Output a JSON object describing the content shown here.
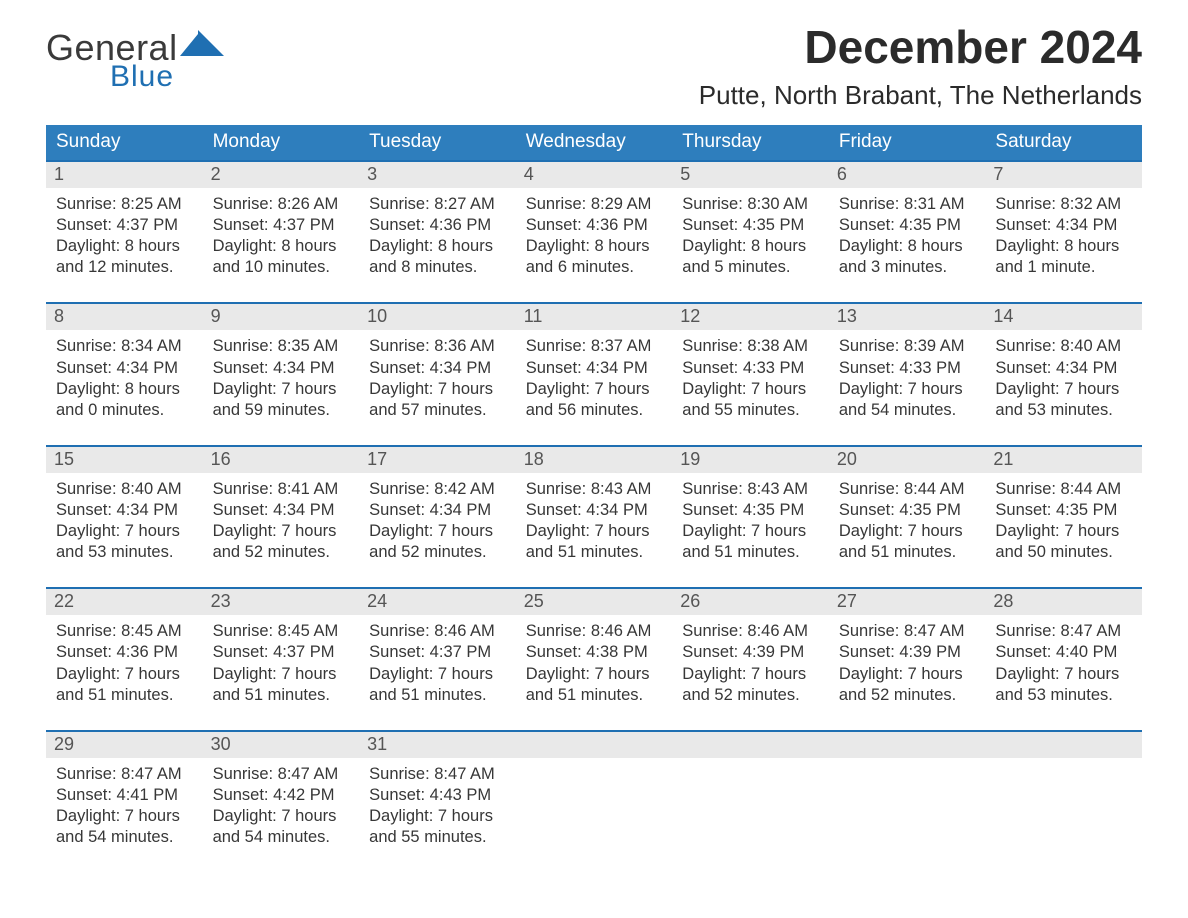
{
  "brand": {
    "word1": "General",
    "word2": "Blue",
    "text_color": "#3a3a3a",
    "accent_color": "#1f6fb2"
  },
  "title": "December 2024",
  "location": "Putte, North Brabant, The Netherlands",
  "colors": {
    "header_bg": "#2e7ebd",
    "header_text": "#ffffff",
    "num_row_bg": "#e9e9e9",
    "divider": "#1f6fb2",
    "page_bg": "#ffffff",
    "body_text": "#373737"
  },
  "day_names": [
    "Sunday",
    "Monday",
    "Tuesday",
    "Wednesday",
    "Thursday",
    "Friday",
    "Saturday"
  ],
  "weeks": [
    [
      {
        "n": "1",
        "sunrise": "8:25 AM",
        "sunset": "4:37 PM",
        "dl1": "Daylight: 8 hours",
        "dl2": "and 12 minutes."
      },
      {
        "n": "2",
        "sunrise": "8:26 AM",
        "sunset": "4:37 PM",
        "dl1": "Daylight: 8 hours",
        "dl2": "and 10 minutes."
      },
      {
        "n": "3",
        "sunrise": "8:27 AM",
        "sunset": "4:36 PM",
        "dl1": "Daylight: 8 hours",
        "dl2": "and 8 minutes."
      },
      {
        "n": "4",
        "sunrise": "8:29 AM",
        "sunset": "4:36 PM",
        "dl1": "Daylight: 8 hours",
        "dl2": "and 6 minutes."
      },
      {
        "n": "5",
        "sunrise": "8:30 AM",
        "sunset": "4:35 PM",
        "dl1": "Daylight: 8 hours",
        "dl2": "and 5 minutes."
      },
      {
        "n": "6",
        "sunrise": "8:31 AM",
        "sunset": "4:35 PM",
        "dl1": "Daylight: 8 hours",
        "dl2": "and 3 minutes."
      },
      {
        "n": "7",
        "sunrise": "8:32 AM",
        "sunset": "4:34 PM",
        "dl1": "Daylight: 8 hours",
        "dl2": "and 1 minute."
      }
    ],
    [
      {
        "n": "8",
        "sunrise": "8:34 AM",
        "sunset": "4:34 PM",
        "dl1": "Daylight: 8 hours",
        "dl2": "and 0 minutes."
      },
      {
        "n": "9",
        "sunrise": "8:35 AM",
        "sunset": "4:34 PM",
        "dl1": "Daylight: 7 hours",
        "dl2": "and 59 minutes."
      },
      {
        "n": "10",
        "sunrise": "8:36 AM",
        "sunset": "4:34 PM",
        "dl1": "Daylight: 7 hours",
        "dl2": "and 57 minutes."
      },
      {
        "n": "11",
        "sunrise": "8:37 AM",
        "sunset": "4:34 PM",
        "dl1": "Daylight: 7 hours",
        "dl2": "and 56 minutes."
      },
      {
        "n": "12",
        "sunrise": "8:38 AM",
        "sunset": "4:33 PM",
        "dl1": "Daylight: 7 hours",
        "dl2": "and 55 minutes."
      },
      {
        "n": "13",
        "sunrise": "8:39 AM",
        "sunset": "4:33 PM",
        "dl1": "Daylight: 7 hours",
        "dl2": "and 54 minutes."
      },
      {
        "n": "14",
        "sunrise": "8:40 AM",
        "sunset": "4:34 PM",
        "dl1": "Daylight: 7 hours",
        "dl2": "and 53 minutes."
      }
    ],
    [
      {
        "n": "15",
        "sunrise": "8:40 AM",
        "sunset": "4:34 PM",
        "dl1": "Daylight: 7 hours",
        "dl2": "and 53 minutes."
      },
      {
        "n": "16",
        "sunrise": "8:41 AM",
        "sunset": "4:34 PM",
        "dl1": "Daylight: 7 hours",
        "dl2": "and 52 minutes."
      },
      {
        "n": "17",
        "sunrise": "8:42 AM",
        "sunset": "4:34 PM",
        "dl1": "Daylight: 7 hours",
        "dl2": "and 52 minutes."
      },
      {
        "n": "18",
        "sunrise": "8:43 AM",
        "sunset": "4:34 PM",
        "dl1": "Daylight: 7 hours",
        "dl2": "and 51 minutes."
      },
      {
        "n": "19",
        "sunrise": "8:43 AM",
        "sunset": "4:35 PM",
        "dl1": "Daylight: 7 hours",
        "dl2": "and 51 minutes."
      },
      {
        "n": "20",
        "sunrise": "8:44 AM",
        "sunset": "4:35 PM",
        "dl1": "Daylight: 7 hours",
        "dl2": "and 51 minutes."
      },
      {
        "n": "21",
        "sunrise": "8:44 AM",
        "sunset": "4:35 PM",
        "dl1": "Daylight: 7 hours",
        "dl2": "and 50 minutes."
      }
    ],
    [
      {
        "n": "22",
        "sunrise": "8:45 AM",
        "sunset": "4:36 PM",
        "dl1": "Daylight: 7 hours",
        "dl2": "and 51 minutes."
      },
      {
        "n": "23",
        "sunrise": "8:45 AM",
        "sunset": "4:37 PM",
        "dl1": "Daylight: 7 hours",
        "dl2": "and 51 minutes."
      },
      {
        "n": "24",
        "sunrise": "8:46 AM",
        "sunset": "4:37 PM",
        "dl1": "Daylight: 7 hours",
        "dl2": "and 51 minutes."
      },
      {
        "n": "25",
        "sunrise": "8:46 AM",
        "sunset": "4:38 PM",
        "dl1": "Daylight: 7 hours",
        "dl2": "and 51 minutes."
      },
      {
        "n": "26",
        "sunrise": "8:46 AM",
        "sunset": "4:39 PM",
        "dl1": "Daylight: 7 hours",
        "dl2": "and 52 minutes."
      },
      {
        "n": "27",
        "sunrise": "8:47 AM",
        "sunset": "4:39 PM",
        "dl1": "Daylight: 7 hours",
        "dl2": "and 52 minutes."
      },
      {
        "n": "28",
        "sunrise": "8:47 AM",
        "sunset": "4:40 PM",
        "dl1": "Daylight: 7 hours",
        "dl2": "and 53 minutes."
      }
    ],
    [
      {
        "n": "29",
        "sunrise": "8:47 AM",
        "sunset": "4:41 PM",
        "dl1": "Daylight: 7 hours",
        "dl2": "and 54 minutes."
      },
      {
        "n": "30",
        "sunrise": "8:47 AM",
        "sunset": "4:42 PM",
        "dl1": "Daylight: 7 hours",
        "dl2": "and 54 minutes."
      },
      {
        "n": "31",
        "sunrise": "8:47 AM",
        "sunset": "4:43 PM",
        "dl1": "Daylight: 7 hours",
        "dl2": "and 55 minutes."
      },
      null,
      null,
      null,
      null
    ]
  ],
  "labels": {
    "sunrise": "Sunrise: ",
    "sunset": "Sunset: "
  }
}
